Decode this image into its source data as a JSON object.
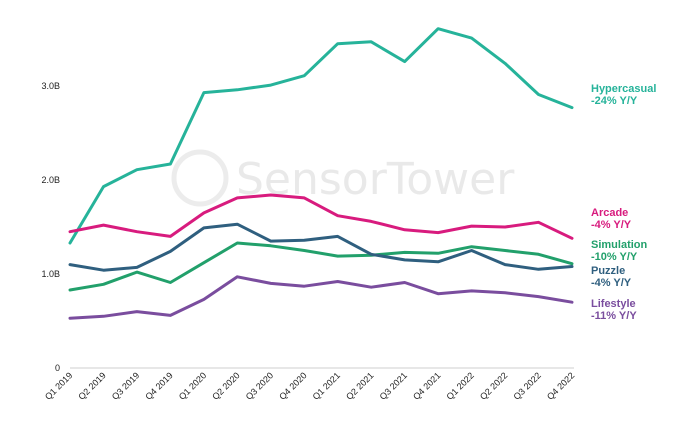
{
  "watermark": {
    "text": "SensorTower"
  },
  "chart_data": {
    "type": "line",
    "categories": [
      "Q1 2019",
      "Q2 2019",
      "Q3 2019",
      "Q4 2019",
      "Q1 2020",
      "Q2 2020",
      "Q3 2020",
      "Q4 2020",
      "Q1 2021",
      "Q2 2021",
      "Q3 2021",
      "Q4 2021",
      "Q1 2022",
      "Q2 2022",
      "Q3 2022",
      "Q4 2022"
    ],
    "y_ticks": [
      {
        "value": 0,
        "label": "0"
      },
      {
        "value": 1.0,
        "label": "1.0B"
      },
      {
        "value": 2.0,
        "label": "2.0B"
      },
      {
        "value": 3.0,
        "label": "3.0B"
      }
    ],
    "ylim": [
      0,
      3.9
    ],
    "grid": false,
    "legend": "right",
    "series": [
      {
        "name": "Hypercasual",
        "change": "-24% Y/Y",
        "color": "#26b39a",
        "values": [
          1.33,
          1.93,
          2.11,
          2.17,
          2.93,
          2.96,
          3.01,
          3.11,
          3.45,
          3.47,
          3.26,
          3.61,
          3.51,
          3.24,
          2.91,
          2.77
        ]
      },
      {
        "name": "Arcade",
        "change": "-4% Y/Y",
        "color": "#d81b7e",
        "values": [
          1.45,
          1.52,
          1.45,
          1.4,
          1.65,
          1.81,
          1.84,
          1.81,
          1.62,
          1.56,
          1.47,
          1.44,
          1.51,
          1.5,
          1.55,
          1.38
        ]
      },
      {
        "name": "Simulation",
        "change": "-10% Y/Y",
        "color": "#22a06b",
        "values": [
          0.83,
          0.89,
          1.02,
          0.91,
          1.12,
          1.33,
          1.3,
          1.25,
          1.19,
          1.2,
          1.23,
          1.22,
          1.29,
          1.25,
          1.21,
          1.11
        ]
      },
      {
        "name": "Puzzle",
        "change": "-4% Y/Y",
        "color": "#2f5f7f",
        "values": [
          1.1,
          1.04,
          1.07,
          1.24,
          1.49,
          1.53,
          1.35,
          1.36,
          1.4,
          1.21,
          1.15,
          1.13,
          1.25,
          1.1,
          1.05,
          1.08
        ]
      },
      {
        "name": "Lifestyle",
        "change": "-11% Y/Y",
        "color": "#7a4d9e",
        "values": [
          0.53,
          0.55,
          0.6,
          0.56,
          0.73,
          0.97,
          0.9,
          0.87,
          0.92,
          0.86,
          0.91,
          0.79,
          0.82,
          0.8,
          0.76,
          0.7
        ]
      }
    ]
  }
}
